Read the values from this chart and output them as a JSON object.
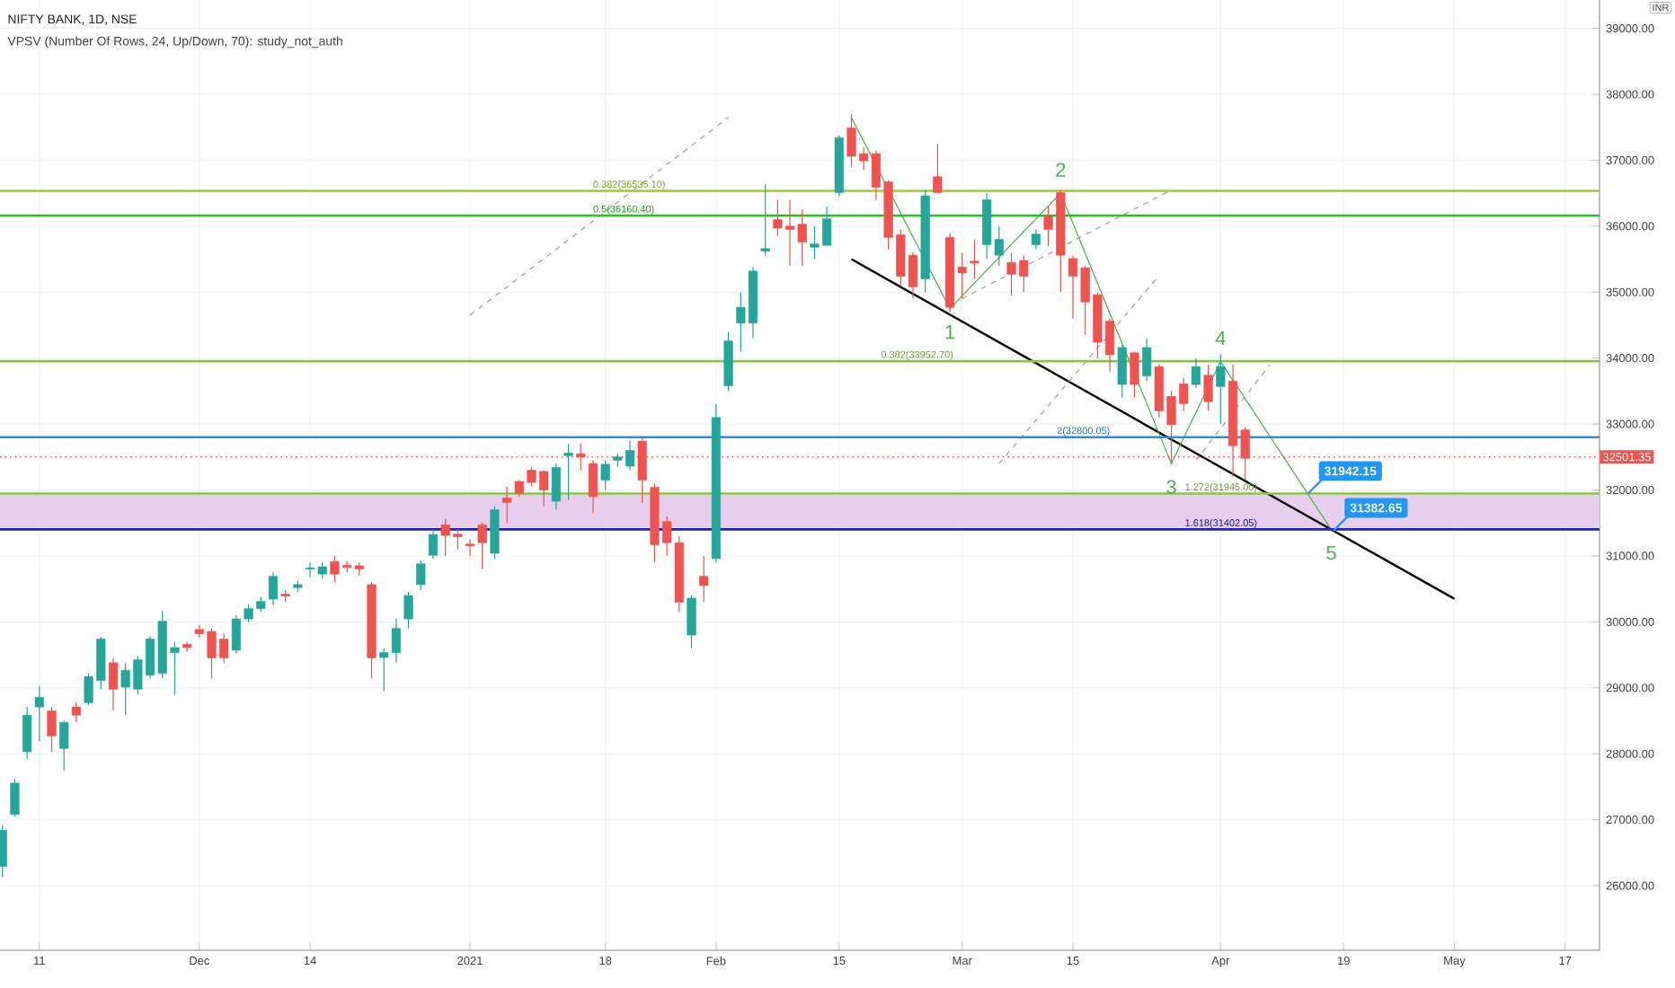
{
  "chart_data": {
    "type": "candlestick",
    "title": "NIFTY BANK, 1D, NSE",
    "subtitle": "VPSV (Number Of Rows, 24, Up/Down, 70): study_not_auth",
    "categories": [
      null,
      null,
      null,
      "11",
      null,
      null,
      null,
      null,
      null,
      null,
      null,
      null,
      null,
      null,
      null,
      null,
      "Dec",
      null,
      null,
      null,
      null,
      null,
      null,
      null,
      null,
      "14",
      null,
      null,
      null,
      null,
      null,
      null,
      null,
      null,
      null,
      null,
      null,
      null,
      "2021",
      null,
      null,
      null,
      null,
      null,
      null,
      null,
      null,
      null,
      null,
      "18",
      null,
      null,
      null,
      null,
      null,
      null,
      null,
      null,
      "Feb",
      null,
      null,
      null,
      null,
      null,
      null,
      null,
      null,
      null,
      "15",
      null,
      null,
      null,
      null,
      null,
      null,
      null,
      null,
      null,
      "Mar",
      null,
      null,
      null,
      null,
      null,
      null,
      null,
      null,
      "15",
      null,
      null,
      null,
      null,
      null,
      null,
      null,
      null,
      null,
      null,
      null,
      "Apr",
      null,
      null,
      null,
      null,
      null,
      null,
      null,
      null,
      null,
      "19",
      null,
      null,
      null,
      null,
      null,
      null,
      null,
      null,
      "May",
      null,
      null,
      null,
      null,
      null,
      null,
      null,
      null,
      "17",
      null,
      null
    ],
    "ohlc": [
      [
        26290,
        26920,
        26130,
        26840
      ],
      [
        27080,
        27620,
        27050,
        27555
      ],
      [
        28030,
        28710,
        27920,
        28585
      ],
      [
        28710,
        29030,
        28190,
        28855
      ],
      [
        28650,
        28710,
        28030,
        28270
      ],
      [
        28080,
        28505,
        27745,
        28475
      ],
      [
        28710,
        28790,
        28475,
        28585
      ],
      [
        28775,
        29220,
        28740,
        29170
      ],
      [
        29110,
        29775,
        28980,
        29740
      ],
      [
        29380,
        29455,
        28665,
        28980
      ],
      [
        29010,
        29380,
        28585,
        29265
      ],
      [
        28980,
        29480,
        28900,
        29425
      ],
      [
        29190,
        29780,
        29140,
        29740
      ],
      [
        29220,
        30170,
        29140,
        30010
      ],
      [
        29535,
        29695,
        28900,
        29610
      ],
      [
        29660,
        29700,
        29550,
        29610
      ],
      [
        29885,
        29950,
        29760,
        29820
      ],
      [
        29855,
        29900,
        29140,
        29455
      ],
      [
        29740,
        29820,
        29380,
        29455
      ],
      [
        29570,
        30100,
        29520,
        30045
      ],
      [
        30045,
        30270,
        29990,
        30200
      ],
      [
        30200,
        30380,
        30150,
        30310
      ],
      [
        30345,
        30750,
        30250,
        30690
      ],
      [
        30420,
        30480,
        30300,
        30390
      ],
      [
        30520,
        30620,
        30450,
        30565
      ],
      [
        30800,
        30900,
        30680,
        30820
      ],
      [
        30725,
        30900,
        30650,
        30835
      ],
      [
        30915,
        31000,
        30600,
        30725
      ],
      [
        30860,
        30920,
        30750,
        30825
      ],
      [
        30850,
        30900,
        30700,
        30800
      ],
      [
        30565,
        30600,
        29140,
        29455
      ],
      [
        29460,
        29600,
        28950,
        29535
      ],
      [
        29535,
        30050,
        29380,
        29900
      ],
      [
        30045,
        30450,
        29900,
        30400
      ],
      [
        30565,
        30930,
        30480,
        30880
      ],
      [
        31010,
        31400,
        30960,
        31325
      ],
      [
        31470,
        31560,
        31000,
        31310
      ],
      [
        31330,
        31400,
        31100,
        31290
      ],
      [
        31180,
        31250,
        31000,
        31150
      ],
      [
        31470,
        31500,
        30800,
        31200
      ],
      [
        31040,
        31750,
        30950,
        31700
      ],
      [
        31880,
        32050,
        31500,
        31810
      ],
      [
        32130,
        32150,
        31900,
        31950
      ],
      [
        32300,
        32350,
        32050,
        32115
      ],
      [
        32280,
        32300,
        31750,
        32000
      ],
      [
        31830,
        32400,
        31700,
        32340
      ],
      [
        32520,
        32700,
        31850,
        32560
      ],
      [
        32550,
        32700,
        32300,
        32500
      ],
      [
        32400,
        32450,
        31650,
        31900
      ],
      [
        32150,
        32450,
        32000,
        32390
      ],
      [
        32450,
        32550,
        32350,
        32500
      ],
      [
        32360,
        32750,
        32300,
        32600
      ],
      [
        32740,
        32800,
        31800,
        32150
      ],
      [
        32040,
        32100,
        30900,
        31170
      ],
      [
        31520,
        31600,
        31000,
        31200
      ],
      [
        31200,
        31300,
        30150,
        30300
      ],
      [
        29800,
        30400,
        29600,
        30360
      ],
      [
        30690,
        31000,
        30300,
        30550
      ],
      [
        30960,
        33300,
        30900,
        33100
      ],
      [
        33580,
        34400,
        33500,
        34260
      ],
      [
        34530,
        35000,
        34100,
        34770
      ],
      [
        34530,
        35380,
        34300,
        35320
      ],
      [
        35620,
        36640,
        35550,
        35660
      ],
      [
        36100,
        36400,
        35850,
        35970
      ],
      [
        36000,
        36400,
        35400,
        35950
      ],
      [
        36030,
        36250,
        35400,
        35760
      ],
      [
        35680,
        36000,
        35500,
        35730
      ],
      [
        35710,
        36300,
        35700,
        36110
      ],
      [
        36510,
        37380,
        36450,
        37340
      ],
      [
        37490,
        37700,
        36900,
        37060
      ],
      [
        37100,
        37200,
        36850,
        36990
      ],
      [
        37100,
        37150,
        36400,
        36590
      ],
      [
        36670,
        36700,
        35650,
        35830
      ],
      [
        35870,
        35950,
        35100,
        35240
      ],
      [
        35560,
        35600,
        34900,
        35080
      ],
      [
        35200,
        36550,
        35000,
        36460
      ],
      [
        36750,
        37250,
        36500,
        36510
      ],
      [
        35830,
        35900,
        34700,
        34770
      ],
      [
        35380,
        35600,
        34900,
        35290
      ],
      [
        35470,
        35800,
        35200,
        35440
      ],
      [
        35720,
        36500,
        35500,
        36400
      ],
      [
        35560,
        36000,
        35400,
        35800
      ],
      [
        35450,
        35600,
        34950,
        35270
      ],
      [
        35480,
        35550,
        35000,
        35240
      ],
      [
        35720,
        35950,
        35650,
        35880
      ],
      [
        36150,
        36300,
        35700,
        35950
      ],
      [
        36510,
        36550,
        35000,
        35560
      ],
      [
        35510,
        35550,
        34600,
        35240
      ],
      [
        35370,
        35400,
        34350,
        34850
      ],
      [
        34960,
        35000,
        34000,
        34240
      ],
      [
        34560,
        34600,
        33800,
        34050
      ],
      [
        33600,
        34200,
        33400,
        34160
      ],
      [
        34080,
        34100,
        33400,
        33600
      ],
      [
        33730,
        34300,
        33650,
        34160
      ],
      [
        33870,
        33900,
        33100,
        33200
      ],
      [
        33420,
        33500,
        32380,
        32990
      ],
      [
        33610,
        33700,
        33200,
        33310
      ],
      [
        33600,
        34000,
        33550,
        33870
      ],
      [
        33740,
        33900,
        33200,
        33340
      ],
      [
        33570,
        34060,
        33000,
        33870
      ],
      [
        33650,
        33900,
        32200,
        32670
      ],
      [
        32910,
        32950,
        32150,
        32480
      ],
      null,
      null,
      null,
      null,
      null,
      null,
      null,
      null,
      null,
      null,
      null,
      null,
      null,
      null,
      null,
      null,
      null,
      null,
      null,
      null,
      null,
      null,
      null,
      null,
      null,
      null,
      null,
      null
    ],
    "colors": [
      "#26a69a",
      "#26a69a",
      "#26a69a",
      "#26a69a",
      "#ef5350",
      "#26a69a",
      "#ef5350",
      "#26a69a",
      "#26a69a",
      "#ef5350",
      "#26a69a",
      "#26a69a",
      "#26a69a",
      "#26a69a",
      "#26a69a",
      "#ef5350",
      "#ef5350",
      "#ef5350",
      "#ef5350",
      "#26a69a",
      "#26a69a",
      "#26a69a",
      "#26a69a",
      "#ef5350",
      "#26a69a",
      "#26a69a",
      "#26a69a",
      "#ef5350",
      "#ef5350",
      "#ef5350",
      "#ef5350",
      "#26a69a",
      "#26a69a",
      "#26a69a",
      "#26a69a",
      "#26a69a",
      "#ef5350",
      "#ef5350",
      "#ef5350",
      "#ef5350",
      "#26a69a",
      "#ef5350",
      "#ef5350",
      "#ef5350",
      "#ef5350",
      "#26a69a",
      "#26a69a",
      "#ef5350",
      "#ef5350",
      "#26a69a",
      "#26a69a",
      "#26a69a",
      "#ef5350",
      "#ef5350",
      "#ef5350",
      "#ef5350",
      "#26a69a",
      "#ef5350",
      "#26a69a",
      "#26a69a",
      "#26a69a",
      "#26a69a",
      "#26a69a",
      "#ef5350",
      "#ef5350",
      "#ef5350",
      "#26a69a",
      "#26a69a",
      "#26a69a",
      "#ef5350",
      "#ef5350",
      "#ef5350",
      "#ef5350",
      "#ef5350",
      "#ef5350",
      "#26a69a",
      "#ef5350",
      "#ef5350",
      "#ef5350",
      "#ef5350",
      "#26a69a",
      "#26a69a",
      "#ef5350",
      "#ef5350",
      "#26a69a",
      "#ef5350",
      "#ef5350",
      "#ef5350",
      "#ef5350",
      "#ef5350",
      "#ef5350",
      "#26a69a",
      "#ef5350",
      "#26a69a",
      "#ef5350",
      "#ef5350",
      "#ef5350",
      "#26a69a",
      "#ef5350",
      "#26a69a",
      "#ef5350",
      "#ef5350",
      null,
      null,
      null,
      null,
      null,
      null,
      null,
      null,
      null,
      null,
      null,
      null,
      null,
      null,
      null,
      null,
      null,
      null,
      null,
      null,
      null,
      null,
      null,
      null,
      null,
      null,
      null,
      null
    ],
    "series": [
      {
        "type": "line",
        "color": "#000000",
        "line_style": "solid",
        "values": [
          null,
          null,
          null,
          null,
          null,
          null,
          null,
          null,
          null,
          null,
          null,
          null,
          null,
          null,
          null,
          null,
          null,
          null,
          null,
          null,
          null,
          null,
          null,
          null,
          null,
          null,
          null,
          null,
          null,
          null,
          null,
          null,
          null,
          null,
          null,
          null,
          null,
          null,
          null,
          null,
          null,
          null,
          null,
          null,
          null,
          null,
          null,
          null,
          null,
          null,
          null,
          null,
          null,
          null,
          null,
          null,
          null,
          null,
          null,
          null,
          null,
          null,
          null,
          null,
          null,
          null,
          null,
          null,
          null,
          35500,
          null,
          null,
          null,
          null,
          null,
          null,
          null,
          null,
          null,
          null,
          null,
          null,
          null,
          null,
          null,
          null,
          null,
          null,
          null,
          null,
          null,
          null,
          null,
          null,
          null,
          null,
          null,
          null,
          null,
          null,
          null,
          null,
          null,
          null,
          null,
          null,
          null,
          null,
          null,
          null,
          null,
          null,
          null,
          null,
          null,
          null,
          null,
          null,
          30350,
          null,
          null,
          null,
          null,
          null,
          null,
          null,
          null,
          null,
          null,
          null
        ]
      },
      {
        "type": "line",
        "color": "#4caf50",
        "line_style": "solid",
        "values": [
          null,
          null,
          null,
          null,
          null,
          null,
          null,
          null,
          null,
          null,
          null,
          null,
          null,
          null,
          null,
          null,
          null,
          null,
          null,
          null,
          null,
          null,
          null,
          null,
          null,
          null,
          null,
          null,
          null,
          null,
          null,
          null,
          null,
          null,
          null,
          null,
          null,
          null,
          null,
          null,
          null,
          null,
          null,
          null,
          null,
          null,
          null,
          null,
          null,
          null,
          null,
          null,
          null,
          null,
          null,
          null,
          null,
          null,
          null,
          null,
          null,
          null,
          null,
          null,
          null,
          null,
          null,
          null,
          null,
          37650,
          null,
          null,
          null,
          null,
          null,
          null,
          null,
          34750,
          null,
          null,
          null,
          null,
          null,
          null,
          null,
          null,
          36500,
          null,
          null,
          null,
          null,
          null,
          null,
          null,
          null,
          32400,
          null,
          null,
          null,
          33950,
          null,
          null,
          null,
          null,
          null,
          null,
          null,
          null,
          31400,
          null,
          null,
          null,
          null,
          null,
          null,
          null,
          null,
          null,
          null,
          null,
          null,
          null,
          null,
          null,
          null,
          null,
          null,
          null,
          null,
          null
        ]
      },
      {
        "type": "line",
        "color": "#9e9e9e",
        "line_style": "dashed",
        "values": [
          null,
          null,
          null,
          null,
          null,
          null,
          null,
          null,
          null,
          null,
          null,
          null,
          null,
          null,
          null,
          null,
          null,
          null,
          null,
          null,
          null,
          null,
          null,
          null,
          null,
          null,
          null,
          null,
          null,
          null,
          null,
          null,
          null,
          null,
          null,
          null,
          null,
          null,
          34650,
          null,
          null,
          null,
          null,
          null,
          null,
          null,
          null,
          null,
          null,
          null,
          null,
          null,
          null,
          null,
          null,
          null,
          null,
          null,
          null,
          37650,
          null,
          null,
          null,
          null,
          null,
          null,
          null,
          null,
          null,
          null,
          null,
          null,
          null,
          null,
          null,
          null,
          null,
          null,
          null,
          null,
          null,
          null,
          null,
          null,
          null,
          null,
          null,
          null,
          null,
          null,
          null,
          null,
          null,
          null,
          null,
          null,
          null,
          null,
          null,
          null,
          null,
          null,
          null,
          null,
          null,
          null,
          null,
          null,
          null,
          null,
          null,
          null,
          null,
          null,
          null,
          null,
          null,
          null,
          null,
          null,
          null,
          null,
          null,
          null,
          null,
          null,
          null,
          null,
          null,
          null
        ]
      },
      {
        "type": "line",
        "color": "#9e9e9f",
        "line_style": "dashed",
        "values": [
          null,
          null,
          null,
          null,
          null,
          null,
          null,
          null,
          null,
          null,
          null,
          null,
          null,
          null,
          null,
          null,
          null,
          null,
          null,
          null,
          null,
          null,
          null,
          null,
          null,
          null,
          null,
          null,
          null,
          null,
          null,
          null,
          null,
          null,
          null,
          null,
          null,
          null,
          null,
          null,
          null,
          null,
          null,
          null,
          null,
          null,
          null,
          null,
          null,
          null,
          null,
          null,
          null,
          null,
          null,
          null,
          null,
          null,
          null,
          null,
          null,
          null,
          null,
          null,
          null,
          null,
          null,
          null,
          null,
          null,
          null,
          null,
          null,
          null,
          null,
          null,
          null,
          null,
          null,
          null,
          null,
          32400,
          null,
          null,
          null,
          null,
          null,
          null,
          null,
          null,
          null,
          null,
          null,
          null,
          35250,
          null,
          null,
          null,
          null,
          null,
          null,
          null,
          null,
          null,
          null,
          null,
          null,
          null,
          null,
          null,
          null,
          null,
          null,
          null,
          null,
          null,
          null,
          null,
          null,
          null,
          null,
          null,
          null,
          null,
          null,
          null,
          null,
          null,
          null,
          null
        ]
      },
      {
        "type": "line",
        "color": "#9e9ea0",
        "line_style": "dashed",
        "values": [
          null,
          null,
          null,
          null,
          null,
          null,
          null,
          null,
          null,
          null,
          null,
          null,
          null,
          null,
          null,
          null,
          null,
          null,
          null,
          null,
          null,
          null,
          null,
          null,
          null,
          null,
          null,
          null,
          null,
          null,
          null,
          null,
          null,
          null,
          null,
          null,
          null,
          null,
          null,
          null,
          null,
          null,
          null,
          null,
          null,
          null,
          null,
          null,
          null,
          null,
          null,
          null,
          null,
          null,
          null,
          null,
          null,
          null,
          null,
          null,
          null,
          null,
          null,
          null,
          null,
          null,
          null,
          null,
          null,
          null,
          null,
          null,
          null,
          null,
          null,
          null,
          null,
          null,
          34900,
          null,
          null,
          null,
          null,
          null,
          null,
          null,
          null,
          null,
          null,
          null,
          null,
          null,
          null,
          null,
          null,
          36550,
          null,
          null,
          null,
          null,
          null,
          null,
          null,
          null,
          null,
          null,
          null,
          null,
          null,
          null,
          null,
          null,
          null,
          null,
          null,
          null,
          null,
          null,
          null,
          null,
          null,
          null,
          null,
          null,
          null,
          null,
          null,
          null,
          null,
          null
        ]
      },
      {
        "type": "line",
        "color": "#9e9ea1",
        "line_style": "dashed",
        "values": [
          null,
          null,
          null,
          null,
          null,
          null,
          null,
          null,
          null,
          null,
          null,
          null,
          null,
          null,
          null,
          null,
          null,
          null,
          null,
          null,
          null,
          null,
          null,
          null,
          null,
          null,
          null,
          null,
          null,
          null,
          null,
          null,
          null,
          null,
          null,
          null,
          null,
          null,
          null,
          null,
          null,
          null,
          null,
          null,
          null,
          null,
          null,
          null,
          null,
          null,
          null,
          null,
          null,
          null,
          null,
          null,
          null,
          null,
          null,
          null,
          null,
          null,
          null,
          null,
          null,
          null,
          null,
          null,
          null,
          null,
          null,
          null,
          null,
          null,
          null,
          null,
          null,
          null,
          null,
          null,
          null,
          null,
          null,
          null,
          null,
          null,
          null,
          null,
          null,
          null,
          null,
          null,
          null,
          null,
          null,
          null,
          null,
          32450,
          null,
          null,
          null,
          null,
          null,
          33900,
          null,
          null,
          null,
          null,
          null,
          null,
          null,
          null,
          null,
          null,
          null,
          null,
          null,
          null,
          null,
          null,
          null,
          null,
          null,
          null,
          null,
          null,
          null,
          null,
          null,
          null
        ]
      }
    ],
    "ref_lines": [
      {
        "axis": "y",
        "value": 36535.1,
        "label": "0.382(36535.10)",
        "color": "#9ccc2c"
      },
      {
        "axis": "y",
        "value": 36160.4,
        "label": "0.5(36160.40)",
        "color": "#22c322"
      },
      {
        "axis": "y",
        "value": 33952.7,
        "label": "0.382(33952.70)",
        "color": "#8bc34a"
      },
      {
        "axis": "y",
        "value": 32800.05,
        "label": "2(32800.05)",
        "color": "#2e8fd6"
      },
      {
        "axis": "y",
        "value": 31945.0,
        "label": "1.272(31945.00)",
        "color": "#8cc44b"
      },
      {
        "axis": "y",
        "value": 31402.05,
        "label": "1.618(31402.05)",
        "color": "#2222aa"
      },
      {
        "axis": "y",
        "value": 32501.35,
        "label": "32501.35",
        "color": "#ef5350",
        "line_style": "dotted"
      }
    ],
    "bands": [
      {
        "axis": "y",
        "from": 31402.05,
        "to": 31945.0,
        "color": "#e8cfee"
      }
    ],
    "annotations": [
      "1",
      "2",
      "3",
      "4",
      "5",
      {
        "text": "31942.15",
        "y": 31942.15
      },
      {
        "text": "31382.65",
        "y": 31382.65
      },
      "INR"
    ],
    "ylim": [
      25020,
      39430
    ],
    "yticks": [
      {
        "value": 26000,
        "label": "26000.00"
      },
      {
        "value": 27000,
        "label": "27000.00"
      },
      {
        "value": 28000,
        "label": "28000.00"
      },
      {
        "value": 29000,
        "label": "29000.00"
      },
      {
        "value": 30000,
        "label": "30000.00"
      },
      {
        "value": 31000,
        "label": "31000.00"
      },
      {
        "value": 32000,
        "label": "32000.00"
      },
      {
        "value": 33000,
        "label": "33000.00"
      },
      {
        "value": 34000,
        "label": "34000.00"
      },
      {
        "value": 35000,
        "label": "35000.00"
      },
      {
        "value": 36000,
        "label": "36000.00"
      },
      {
        "value": 37000,
        "label": "37000.00"
      },
      {
        "value": 38000,
        "label": "38000.00"
      },
      {
        "value": 39000,
        "label": "39000.00"
      }
    ],
    "grid": true
  }
}
